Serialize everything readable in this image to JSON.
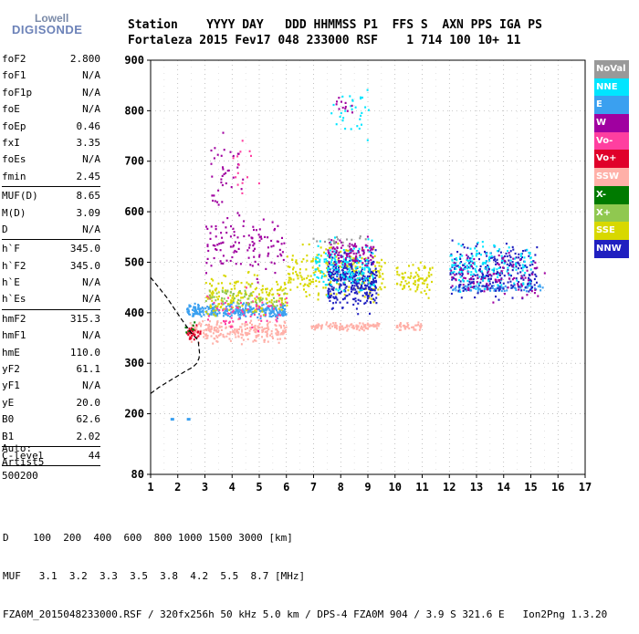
{
  "logo": {
    "line1": "Lowell",
    "line2": "DIGISONDE"
  },
  "header": {
    "row1": "Station    YYYY DAY   DDD HHMMSS P1  FFS S  AXN PPS IGA PS",
    "row2": "Fortaleza 2015 Fev17 048 233000 RSF    1 714 100 10+ 11"
  },
  "params": {
    "g1": [
      [
        "foF2",
        "2.800"
      ],
      [
        "foF1",
        "N/A"
      ],
      [
        "foF1p",
        "N/A"
      ],
      [
        "foE",
        "N/A"
      ],
      [
        "foEp",
        "0.46"
      ],
      [
        "fxI",
        "3.35"
      ],
      [
        "foEs",
        "N/A"
      ],
      [
        "fmin",
        "2.45"
      ]
    ],
    "g2": [
      [
        "MUF(D)",
        "8.65"
      ],
      [
        "M(D)",
        "3.09"
      ],
      [
        "D",
        "N/A"
      ]
    ],
    "g3": [
      [
        "h`F",
        "345.0"
      ],
      [
        "h`F2",
        "345.0"
      ],
      [
        "h`E",
        "N/A"
      ],
      [
        "h`Es",
        "N/A"
      ]
    ],
    "g4": [
      [
        "hmF2",
        "315.3"
      ],
      [
        "hmF1",
        "N/A"
      ],
      [
        "hmE",
        "110.0"
      ],
      [
        "yF2",
        "61.1"
      ],
      [
        "yF1",
        "N/A"
      ],
      [
        "yE",
        "20.0"
      ],
      [
        "B0",
        "62.6"
      ],
      [
        "B1",
        "2.02"
      ]
    ],
    "g5": [
      [
        "C-level",
        "44"
      ]
    ]
  },
  "auto": {
    "line1": "Auto:",
    "line2": "Artist5",
    "line3": "500200"
  },
  "legend": [
    {
      "label": "NoVal",
      "color": "#999999"
    },
    {
      "label": "NNE",
      "color": "#00e5ff"
    },
    {
      "label": "E",
      "color": "#3aa0f0"
    },
    {
      "label": "W",
      "color": "#a000a0"
    },
    {
      "label": "Vo-",
      "color": "#ff3fa0"
    },
    {
      "label": "Vo+",
      "color": "#e0002a"
    },
    {
      "label": "SSW",
      "color": "#ffb0a8"
    },
    {
      "label": "X-",
      "color": "#007a00"
    },
    {
      "label": "X+",
      "color": "#90c850"
    },
    {
      "label": "SSE",
      "color": "#d8d800"
    },
    {
      "label": "NNW",
      "color": "#2020c0"
    }
  ],
  "footer": {
    "row1": "D    100  200  400  600  800 1000 1500 3000 [km]",
    "row2": "MUF   3.1  3.2  3.3  3.5  3.8  4.2  5.5  8.7 [MHz]",
    "row3": "FZA0M_2015048233000.RSF / 320fx256h 50 kHz 5.0 km / DPS-4 FZA0M 904 / 3.9 S 321.6 E   Ion2Png 1.3.20"
  },
  "chart_data": {
    "type": "scatter",
    "title": "",
    "xlabel": "",
    "ylabel": "",
    "xlim": [
      1,
      17
    ],
    "ylim": [
      80,
      900
    ],
    "xticks": [
      1,
      2,
      3,
      4,
      5,
      6,
      7,
      8,
      9,
      10,
      11,
      12,
      13,
      14,
      15,
      16,
      17
    ],
    "yticks": [
      80,
      200,
      300,
      400,
      500,
      600,
      700,
      800,
      900
    ],
    "grid": true,
    "clusters": [
      {
        "name": "SSW",
        "color": "#ffb0a8",
        "x": [
          2.4,
          6.0
        ],
        "y": [
          335,
          395
        ],
        "n": 260
      },
      {
        "name": "SSW",
        "color": "#ffb0a8",
        "x": [
          6.8,
          9.4
        ],
        "y": [
          365,
          385
        ],
        "n": 120
      },
      {
        "name": "SSW",
        "color": "#ffb0a8",
        "x": [
          10.0,
          11.0
        ],
        "y": [
          365,
          385
        ],
        "n": 40
      },
      {
        "name": "E",
        "color": "#3aa0f0",
        "x": [
          2.3,
          6.0
        ],
        "y": [
          385,
          425
        ],
        "n": 300
      },
      {
        "name": "E",
        "color": "#3aa0f0",
        "x": [
          12.0,
          15.5
        ],
        "y": [
          440,
          460
        ],
        "n": 90
      },
      {
        "name": "SSE",
        "color": "#d8d800",
        "x": [
          3.0,
          6.0
        ],
        "y": [
          380,
          490
        ],
        "n": 180
      },
      {
        "name": "SSE",
        "color": "#d8d800",
        "x": [
          6.0,
          9.6
        ],
        "y": [
          400,
          560
        ],
        "n": 240
      },
      {
        "name": "SSE",
        "color": "#d8d800",
        "x": [
          10.0,
          11.4
        ],
        "y": [
          420,
          520
        ],
        "n": 80
      },
      {
        "name": "NNW",
        "color": "#2020c0",
        "x": [
          7.5,
          9.3
        ],
        "y": [
          390,
          540
        ],
        "n": 330
      },
      {
        "name": "NNW",
        "color": "#2020c0",
        "x": [
          12.0,
          15.2
        ],
        "y": [
          410,
          560
        ],
        "n": 260
      },
      {
        "name": "NNE",
        "color": "#00e5ff",
        "x": [
          7.0,
          9.2
        ],
        "y": [
          420,
          560
        ],
        "n": 160
      },
      {
        "name": "NNE",
        "color": "#00e5ff",
        "x": [
          12.0,
          15.0
        ],
        "y": [
          430,
          560
        ],
        "n": 150
      },
      {
        "name": "NNE",
        "color": "#00e5ff",
        "x": [
          7.5,
          9.0
        ],
        "y": [
          720,
          880
        ],
        "n": 30
      },
      {
        "name": "W",
        "color": "#a000a0",
        "x": [
          3.0,
          5.9
        ],
        "y": [
          450,
          620
        ],
        "n": 120
      },
      {
        "name": "W",
        "color": "#a000a0",
        "x": [
          7.5,
          9.2
        ],
        "y": [
          480,
          560
        ],
        "n": 90
      },
      {
        "name": "W",
        "color": "#a000a0",
        "x": [
          12.0,
          15.5
        ],
        "y": [
          410,
          540
        ],
        "n": 90
      },
      {
        "name": "W",
        "color": "#a000a0",
        "x": [
          3.2,
          4.4
        ],
        "y": [
          560,
          780
        ],
        "n": 40
      },
      {
        "name": "W",
        "color": "#a000a0",
        "x": [
          7.8,
          8.4
        ],
        "y": [
          780,
          840
        ],
        "n": 12
      },
      {
        "name": "Vo-",
        "color": "#ff3fa0",
        "x": [
          3.0,
          6.0
        ],
        "y": [
          350,
          460
        ],
        "n": 70
      },
      {
        "name": "Vo-",
        "color": "#ff3fa0",
        "x": [
          4.0,
          5.0
        ],
        "y": [
          600,
          790
        ],
        "n": 14
      },
      {
        "name": "Vo+",
        "color": "#e0002a",
        "x": [
          2.3,
          2.8
        ],
        "y": [
          340,
          380
        ],
        "n": 30
      },
      {
        "name": "X-",
        "color": "#007a00",
        "x": [
          2.2,
          2.6
        ],
        "y": [
          355,
          390
        ],
        "n": 8
      },
      {
        "name": "X+",
        "color": "#90c850",
        "x": [
          3.0,
          6.0
        ],
        "y": [
          395,
          465
        ],
        "n": 60
      },
      {
        "name": "NoVal",
        "color": "#999999",
        "x": [
          6.8,
          9.0
        ],
        "y": [
          530,
          560
        ],
        "n": 18
      }
    ],
    "isolated_points": [
      {
        "x": 1.8,
        "y": 190,
        "color": "#3aa0f0"
      },
      {
        "x": 2.4,
        "y": 190,
        "color": "#3aa0f0"
      }
    ],
    "trace": {
      "color": "#000000",
      "style": "dashed",
      "x": [
        1.0,
        1.6,
        2.1,
        2.5,
        2.75,
        2.8,
        2.78,
        2.7,
        2.55,
        2.3,
        2.0,
        1.6,
        1.3,
        1.0
      ],
      "y": [
        470,
        430,
        390,
        360,
        345,
        320,
        310,
        300,
        292,
        285,
        275,
        262,
        252,
        240
      ]
    }
  }
}
